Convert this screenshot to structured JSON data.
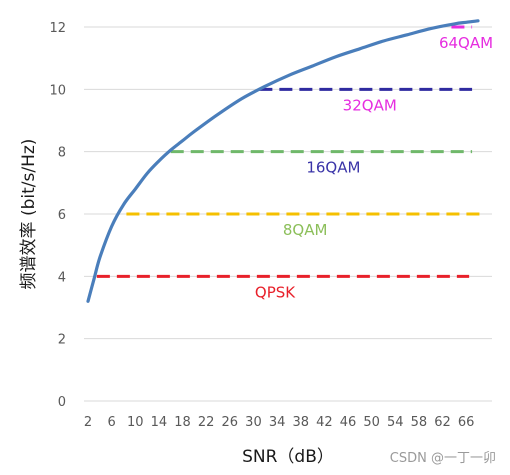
{
  "chart_data": {
    "type": "line",
    "title": "",
    "xlabel": "SNR（dB）",
    "ylabel": "频谱效率 (bit/s/Hz)",
    "xlim": [
      2,
      68
    ],
    "ylim": [
      0,
      12
    ],
    "y_ticks": [
      0,
      2,
      4,
      6,
      8,
      10,
      12
    ],
    "x_ticks": [
      2,
      6,
      10,
      14,
      18,
      22,
      26,
      30,
      34,
      38,
      42,
      46,
      50,
      54,
      58,
      62,
      66
    ],
    "x_tick_labels": [
      "2",
      "6",
      "10",
      "14",
      "18",
      "22",
      "26",
      "30",
      "34",
      "38",
      "42",
      "46",
      "50",
      "54",
      "58",
      "62",
      "66"
    ],
    "grid": "horizontal",
    "series": [
      {
        "color": "#4a7ebb",
        "x": [
          2,
          3,
          4,
          6,
          8,
          10,
          12,
          14,
          16,
          18,
          20,
          24,
          28,
          32,
          36,
          40,
          44,
          48,
          52,
          56,
          60,
          64,
          66,
          68
        ],
        "y": [
          3.2,
          3.9,
          4.6,
          5.6,
          6.3,
          6.8,
          7.3,
          7.7,
          8.05,
          8.35,
          8.65,
          9.2,
          9.7,
          10.1,
          10.45,
          10.75,
          11.05,
          11.3,
          11.55,
          11.75,
          11.95,
          12.1,
          12.15,
          12.2
        ]
      }
    ],
    "thresholds": [
      {
        "label": "QPSK",
        "y": 4,
        "x_start": 3.5,
        "x_end": 66.5,
        "color": "#e8202a",
        "label_color": "#e8202a"
      },
      {
        "label": "8QAM",
        "y": 6,
        "x_start": 8.5,
        "x_end": 69,
        "color": "#f5c000",
        "label_color": "#8cbf5a"
      },
      {
        "label": "16QAM",
        "y": 8,
        "x_start": 16,
        "x_end": 67,
        "color": "#6fb86a",
        "label_color": "#3a34a8"
      },
      {
        "label": "32QAM",
        "y": 10,
        "x_start": 31,
        "x_end": 67,
        "color": "#2f2aa0",
        "label_color": "#e62de0"
      },
      {
        "label": "64QAM",
        "y": 12,
        "x_start": 63.5,
        "x_end": 67,
        "color": "#e62de0",
        "label_color": "#e62de0"
      }
    ]
  },
  "watermark": "CSDN @一丁一卯"
}
